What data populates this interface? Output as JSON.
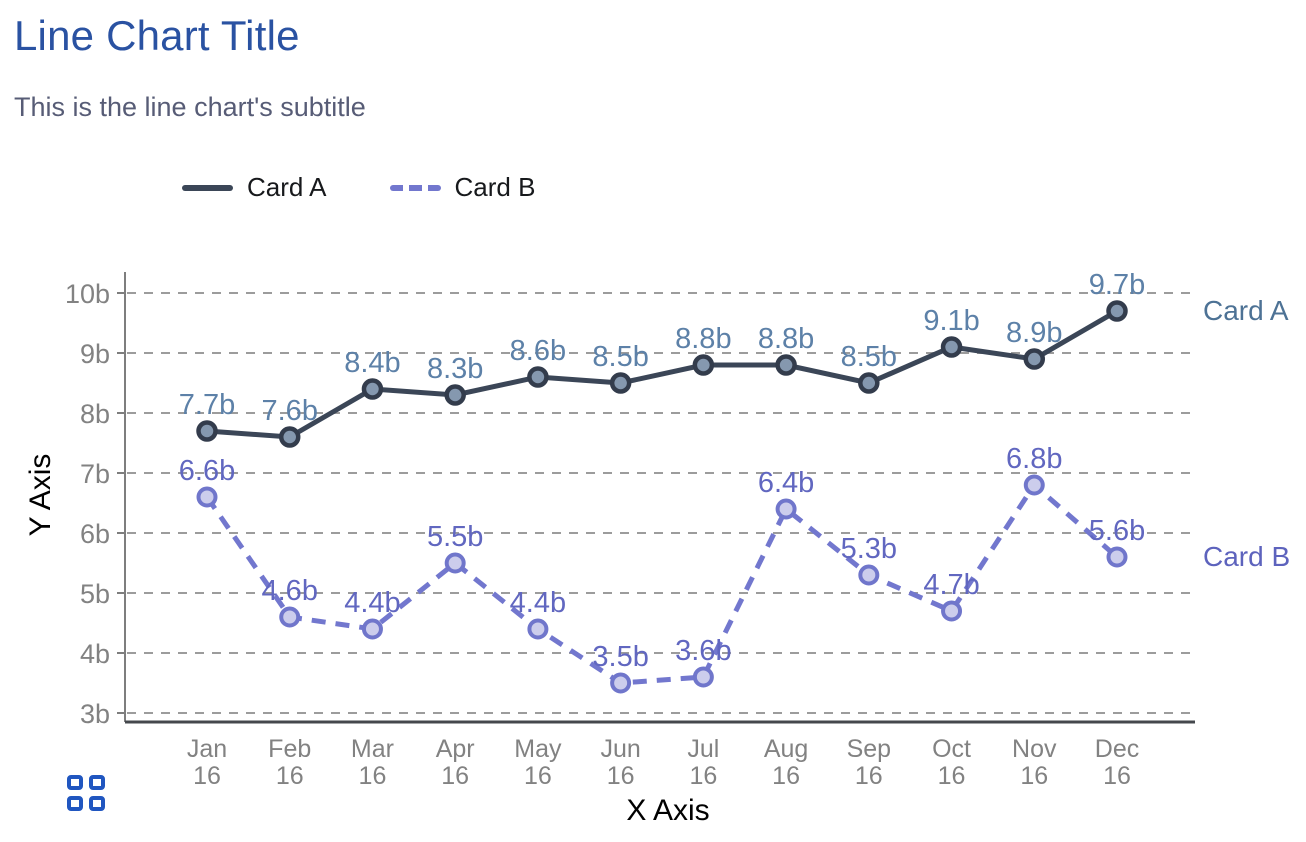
{
  "chart_data": {
    "type": "line",
    "title": "Line Chart Title",
    "subtitle": "This is the line chart's subtitle",
    "xlabel": "X Axis",
    "ylabel": "Y Axis",
    "categories": [
      "Jan 16",
      "Feb 16",
      "Mar 16",
      "Apr 16",
      "May 16",
      "Jun 16",
      "Jul 16",
      "Aug 16",
      "Sep 16",
      "Oct 16",
      "Nov 16",
      "Dec 16"
    ],
    "series": [
      {
        "name": "Card A",
        "line_style": "solid",
        "values": [
          7.7,
          7.6,
          8.4,
          8.3,
          8.6,
          8.5,
          8.8,
          8.8,
          8.5,
          9.1,
          8.9,
          9.7
        ],
        "point_labels": [
          "7.7b",
          "7.6b",
          "8.4b",
          "8.3b",
          "8.6b",
          "8.5b",
          "8.8b",
          "8.8b",
          "8.5b",
          "9.1b",
          "8.9b",
          "9.7b"
        ]
      },
      {
        "name": "Card B",
        "line_style": "dashed",
        "values": [
          6.6,
          4.6,
          4.4,
          5.5,
          4.4,
          3.5,
          3.6,
          6.4,
          5.3,
          4.7,
          6.8,
          5.6
        ],
        "point_labels": [
          "6.6b",
          "4.6b",
          "4.4b",
          "5.5b",
          "4.4b",
          "3.5b",
          "3.6b",
          "6.4b",
          "5.3b",
          "4.7b",
          "6.8b",
          "5.6b"
        ]
      }
    ],
    "y_ticks": [
      {
        "value": 10,
        "label": "10b"
      },
      {
        "value": 9,
        "label": "9b"
      },
      {
        "value": 8,
        "label": "8b"
      },
      {
        "value": 7,
        "label": "7b"
      },
      {
        "value": 6,
        "label": "6b"
      },
      {
        "value": 5,
        "label": "5b"
      },
      {
        "value": 4,
        "label": "4b"
      },
      {
        "value": 3,
        "label": "3b"
      }
    ],
    "ylim": [
      3,
      10
    ],
    "grid": "horizontal-dashed",
    "legend_position": "top-left",
    "series_end_labels": [
      "Card A",
      "Card B"
    ]
  },
  "colors": {
    "title": "#2a52a2",
    "subtitle": "#575c76",
    "legend_text": "#17191c",
    "card_a": {
      "line": "#3b4657",
      "marker_ring": "#333c4c",
      "marker_fill": "#8598af",
      "value_label": "#5d81a8",
      "side_label": "#4d7295"
    },
    "card_b": {
      "line": "#7277ce",
      "marker_ring": "#7076cb",
      "marker_fill": "#cccdec",
      "value_label": "#6167c0",
      "side_label": "#5d63bd"
    },
    "grid_line": "#9c9c9c",
    "axis_line": "#7e7e7e",
    "axis_base_line": "#45484d",
    "tick_text": "#828282",
    "axis_title_text": "#000000",
    "grid_icon": "#2056c0"
  },
  "icons": {
    "bottom_left": "grid-icon (2x2 squares)"
  }
}
